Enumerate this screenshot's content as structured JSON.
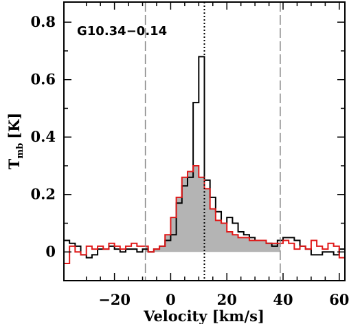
{
  "chart_data": {
    "type": "line",
    "annotation": "G10.34−0.14",
    "xlabel": "Velocity [km/s]",
    "ylabel_main": "T",
    "ylabel_sub": "mb",
    "ylabel_unit": "[K]",
    "xlim": [
      -38,
      62
    ],
    "ylim": [
      -0.1,
      0.87
    ],
    "xticks": [
      -20,
      0,
      20,
      40,
      60
    ],
    "xtick_labels": [
      "−20",
      "0",
      "20",
      "40",
      "60"
    ],
    "yticks": [
      0,
      0.2,
      0.4,
      0.6,
      0.8
    ],
    "ytick_labels": [
      "0",
      "0.2",
      "0.4",
      "0.6",
      "0.8"
    ],
    "vlines": [
      {
        "x": -9,
        "style": "dashed",
        "color": "#8a8a8a"
      },
      {
        "x": 39,
        "style": "dashed",
        "color": "#8a8a8a"
      },
      {
        "x": 12,
        "style": "dotted",
        "color": "#000000"
      }
    ],
    "colors": {
      "black_series": "#000000",
      "red_series": "#e01818",
      "fill": "#b4b4b4"
    },
    "series": [
      {
        "style": "step",
        "color": "#000000",
        "x": [
          -38,
          -36,
          -34,
          -32,
          -30,
          -28,
          -26,
          -24,
          -22,
          -20,
          -18,
          -16,
          -14,
          -12,
          -10,
          -8,
          -6,
          -4,
          -2,
          0,
          2,
          4,
          6,
          8,
          10,
          12,
          14,
          16,
          18,
          20,
          22,
          24,
          26,
          28,
          30,
          32,
          34,
          36,
          38,
          40,
          42,
          44,
          46,
          48,
          50,
          52,
          54,
          56,
          58,
          60
        ],
        "y": [
          0.04,
          0.03,
          0.02,
          -0.01,
          -0.02,
          -0.01,
          0.01,
          0.01,
          0.02,
          0.01,
          0.0,
          0.01,
          0.01,
          0.0,
          0.01,
          0.0,
          0.01,
          0.02,
          0.04,
          0.06,
          0.17,
          0.23,
          0.26,
          0.52,
          0.68,
          0.25,
          0.19,
          0.14,
          0.1,
          0.12,
          0.1,
          0.07,
          0.06,
          0.05,
          0.04,
          0.04,
          0.03,
          0.02,
          0.04,
          0.05,
          0.05,
          0.04,
          0.02,
          0.01,
          -0.01,
          -0.01,
          0.0,
          0.0,
          -0.01,
          0.01
        ]
      },
      {
        "style": "step",
        "color": "#e01818",
        "x": [
          -38,
          -36,
          -34,
          -32,
          -30,
          -28,
          -26,
          -24,
          -22,
          -20,
          -18,
          -16,
          -14,
          -12,
          -10,
          -8,
          -6,
          -4,
          -2,
          0,
          2,
          4,
          6,
          8,
          10,
          12,
          14,
          16,
          18,
          20,
          22,
          24,
          26,
          28,
          30,
          32,
          34,
          36,
          38,
          40,
          42,
          44,
          46,
          48,
          50,
          52,
          54,
          56,
          58,
          60
        ],
        "y": [
          -0.04,
          0.02,
          0.0,
          -0.01,
          0.02,
          0.01,
          0.02,
          0.01,
          0.03,
          0.02,
          0.01,
          0.02,
          0.03,
          0.02,
          0.02,
          0.0,
          0.01,
          0.02,
          0.06,
          0.12,
          0.19,
          0.26,
          0.28,
          0.3,
          0.26,
          0.22,
          0.15,
          0.11,
          0.1,
          0.07,
          0.06,
          0.05,
          0.05,
          0.04,
          0.04,
          0.04,
          0.03,
          0.03,
          0.03,
          0.04,
          0.03,
          0.01,
          0.02,
          0.01,
          0.04,
          0.02,
          0.01,
          0.03,
          0.02,
          -0.02
        ]
      }
    ],
    "filled_series_index": 1,
    "fill_range": [
      -9,
      39
    ]
  }
}
